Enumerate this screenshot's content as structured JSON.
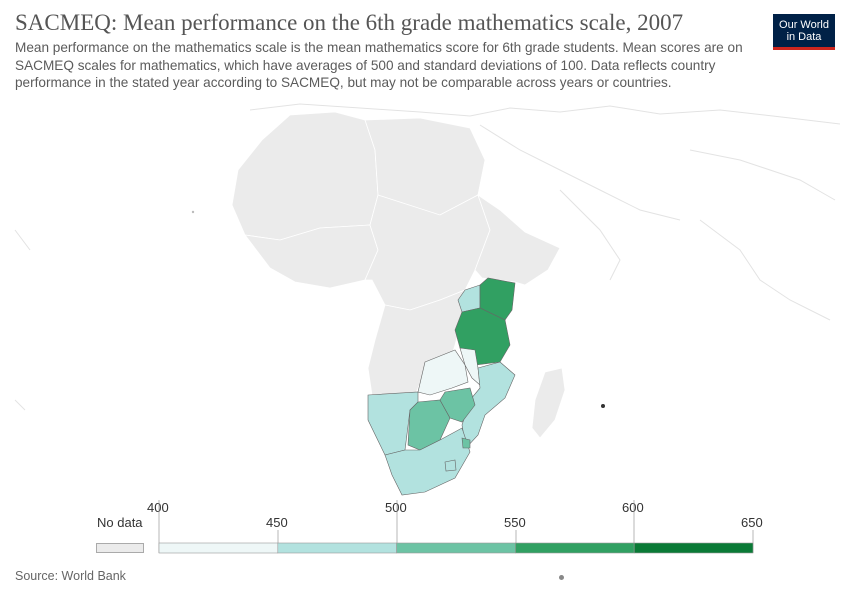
{
  "header": {
    "title": "SACMEQ: Mean performance on the 6th grade mathematics scale, 2007",
    "subtitle": "Mean performance on the mathematics scale is the mean mathematics score for 6th grade students. Mean scores are on SACMEQ scales for mathematics, which have averages of 500 and standard deviations of 100. Data reflects country performance in the stated year according to SACMEQ, but may not be comparable across years or countries."
  },
  "logo": {
    "line1": "Our World",
    "line2": "in Data",
    "bg": "#002147",
    "accent": "#ce261e"
  },
  "legend": {
    "no_data_label": "No data",
    "no_data_color": "#ebebeb",
    "ticks": [
      "400",
      "450",
      "500",
      "550",
      "600",
      "650"
    ],
    "bins": [
      {
        "range": "400-450",
        "color": "#eef7f7"
      },
      {
        "range": "450-500",
        "color": "#b2e2df"
      },
      {
        "range": "500-550",
        "color": "#6cc3a4"
      },
      {
        "range": "550-600",
        "color": "#31a062"
      },
      {
        "range": "600-650",
        "color": "#0a7a36"
      }
    ]
  },
  "map_regions": [
    {
      "region": "Uganda",
      "bin": "450-500"
    },
    {
      "region": "Kenya",
      "bin": "550-600"
    },
    {
      "region": "Tanzania",
      "bin": "550-600"
    },
    {
      "region": "Malawi",
      "bin": "400-450"
    },
    {
      "region": "Zambia",
      "bin": "400-450"
    },
    {
      "region": "Mozambique",
      "bin": "450-500"
    },
    {
      "region": "Namibia",
      "bin": "450-500"
    },
    {
      "region": "Botswana",
      "bin": "500-550"
    },
    {
      "region": "Zimbabwe",
      "bin": "500-550"
    },
    {
      "region": "Swaziland",
      "bin": "500-550"
    },
    {
      "region": "South Africa",
      "bin": "450-500"
    },
    {
      "region": "Lesotho",
      "bin": "450-500"
    }
  ],
  "footer": {
    "source": "Source: World Bank"
  }
}
